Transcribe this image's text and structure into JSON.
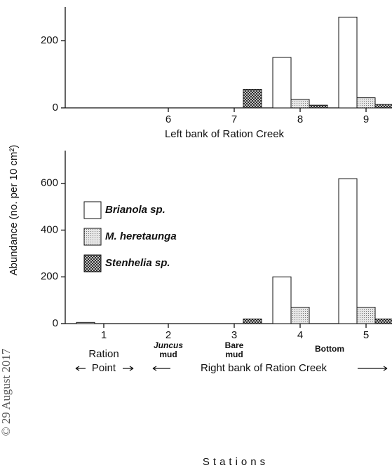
{
  "chart_data": [
    {
      "type": "bar",
      "xlabel": "Left bank of Ration Creek",
      "categories": [
        "6",
        "7",
        "8",
        "9"
      ],
      "series": [
        {
          "color": "#ffffff",
          "values": [
            0,
            0,
            150,
            270
          ]
        },
        {
          "color": "#d4d4d4",
          "values": [
            0,
            0,
            25,
            30
          ]
        },
        {
          "color": "#444444",
          "values": [
            0,
            55,
            8,
            10
          ]
        }
      ],
      "ylim": [
        0,
        300
      ],
      "yticks": [
        0,
        200
      ]
    },
    {
      "type": "bar",
      "xlabel": "Stations",
      "ylabel": "Abundance (no. per 10 cm²)",
      "categories": [
        "1",
        "2",
        "3",
        "4",
        "5"
      ],
      "series": [
        {
          "name": "Brianola sp.",
          "color": "#ffffff",
          "values": [
            5,
            0,
            0,
            200,
            620
          ]
        },
        {
          "name": "M. heretaunga",
          "color": "#d4d4d4",
          "values": [
            0,
            0,
            0,
            70,
            70
          ]
        },
        {
          "name": "Stenhelia sp.",
          "color": "#444444",
          "values": [
            0,
            0,
            20,
            0,
            20
          ]
        }
      ],
      "ylim": [
        0,
        740
      ],
      "yticks": [
        0,
        200,
        400,
        600
      ],
      "annotations": [
        "Juncus",
        "mud",
        "Bare",
        "mud",
        "Bottom",
        "Ration",
        "Point",
        "Right bank of Ration Creek"
      ]
    }
  ],
  "watermark": "© 29 August 2017"
}
